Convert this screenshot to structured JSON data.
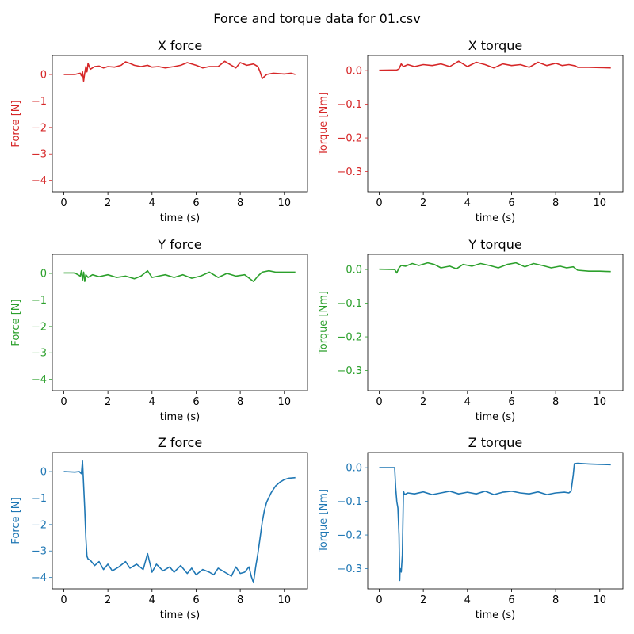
{
  "figure": {
    "suptitle": "Force and torque data for 01.csv"
  },
  "chart_data": [
    {
      "type": "line",
      "title": "X force",
      "xlabel": "time (s)",
      "ylabel": "Force [N]",
      "color": "#d62728",
      "xlim": [
        -0.52,
        11.05
      ],
      "ylim": [
        -4.43,
        0.72
      ],
      "xticks": [
        0,
        2,
        4,
        6,
        8,
        10
      ],
      "xtick_labels": [
        "0",
        "2",
        "4",
        "6",
        "8",
        "10"
      ],
      "yticks": [
        0,
        -1,
        -2,
        -3,
        -4
      ],
      "ytick_labels": [
        "0",
        "−1",
        "−2",
        "−3",
        "−4"
      ],
      "series": [
        {
          "x": [
            0,
            0.5,
            0.75,
            0.8,
            0.85,
            0.9,
            0.95,
            1.0,
            1.05,
            1.1,
            1.2,
            1.4,
            1.6,
            1.8,
            2.0,
            2.3,
            2.6,
            2.8,
            3.0,
            3.2,
            3.5,
            3.8,
            4.0,
            4.3,
            4.6,
            5.0,
            5.3,
            5.6,
            6.0,
            6.3,
            6.6,
            7.0,
            7.3,
            7.6,
            7.8,
            8.0,
            8.3,
            8.6,
            8.8,
            8.9,
            9.0,
            9.2,
            9.5,
            10.0,
            10.3,
            10.5
          ],
          "y": [
            0,
            0,
            0.05,
            -0.05,
            0.1,
            -0.25,
            0.05,
            0.3,
            0.1,
            0.42,
            0.2,
            0.3,
            0.32,
            0.25,
            0.3,
            0.28,
            0.35,
            0.48,
            0.42,
            0.35,
            0.3,
            0.35,
            0.28,
            0.3,
            0.25,
            0.3,
            0.35,
            0.45,
            0.35,
            0.25,
            0.3,
            0.3,
            0.5,
            0.35,
            0.25,
            0.45,
            0.35,
            0.4,
            0.3,
            0.1,
            -0.15,
            0.0,
            0.05,
            0.02,
            0.05,
            0.0
          ]
        }
      ]
    },
    {
      "type": "line",
      "title": "X torque",
      "xlabel": "time (s)",
      "ylabel": "Torque [Nm]",
      "color": "#d62728",
      "xlim": [
        -0.52,
        11.05
      ],
      "ylim": [
        -0.36,
        0.045
      ],
      "xticks": [
        0,
        2,
        4,
        6,
        8,
        10
      ],
      "xtick_labels": [
        "0",
        "2",
        "4",
        "6",
        "8",
        "10"
      ],
      "yticks": [
        0,
        -0.1,
        -0.2,
        -0.3
      ],
      "ytick_labels": [
        "0.0",
        "−0.1",
        "−0.2",
        "−0.3"
      ],
      "series": [
        {
          "x": [
            0,
            0.8,
            0.9,
            1.0,
            1.1,
            1.3,
            1.6,
            2.0,
            2.4,
            2.8,
            3.2,
            3.6,
            3.8,
            4.0,
            4.4,
            4.8,
            5.2,
            5.6,
            6.0,
            6.4,
            6.8,
            7.2,
            7.6,
            8.0,
            8.3,
            8.6,
            8.9,
            9.0,
            9.5,
            10.0,
            10.5
          ],
          "y": [
            0.001,
            0.002,
            0.005,
            0.02,
            0.012,
            0.018,
            0.012,
            0.018,
            0.015,
            0.02,
            0.012,
            0.028,
            0.02,
            0.012,
            0.025,
            0.018,
            0.008,
            0.02,
            0.015,
            0.018,
            0.01,
            0.025,
            0.015,
            0.022,
            0.015,
            0.018,
            0.014,
            0.01,
            0.01,
            0.009,
            0.008
          ]
        }
      ]
    },
    {
      "type": "line",
      "title": "Y force",
      "xlabel": "time (s)",
      "ylabel": "Force [N]",
      "color": "#2ca02c",
      "xlim": [
        -0.52,
        11.05
      ],
      "ylim": [
        -4.43,
        0.72
      ],
      "xticks": [
        0,
        2,
        4,
        6,
        8,
        10
      ],
      "xtick_labels": [
        "0",
        "2",
        "4",
        "6",
        "8",
        "10"
      ],
      "yticks": [
        0,
        -1,
        -2,
        -3,
        -4
      ],
      "ytick_labels": [
        "0",
        "−1",
        "−2",
        "−3",
        "−4"
      ],
      "series": [
        {
          "x": [
            0,
            0.5,
            0.75,
            0.8,
            0.85,
            0.9,
            0.95,
            1.0,
            1.05,
            1.1,
            1.3,
            1.6,
            2.0,
            2.4,
            2.8,
            3.2,
            3.5,
            3.8,
            4.0,
            4.3,
            4.6,
            5.0,
            5.4,
            5.8,
            6.2,
            6.6,
            7.0,
            7.4,
            7.8,
            8.2,
            8.6,
            8.8,
            9.0,
            9.3,
            9.6,
            10.0,
            10.5
          ],
          "y": [
            0.02,
            0.02,
            -0.1,
            0.1,
            -0.25,
            0.05,
            -0.3,
            -0.05,
            -0.1,
            -0.15,
            -0.05,
            -0.12,
            -0.05,
            -0.15,
            -0.1,
            -0.2,
            -0.1,
            0.1,
            -0.15,
            -0.1,
            -0.05,
            -0.15,
            -0.05,
            -0.18,
            -0.1,
            0.05,
            -0.15,
            0.0,
            -0.1,
            -0.05,
            -0.3,
            -0.1,
            0.05,
            0.1,
            0.05,
            0.05,
            0.05
          ]
        }
      ]
    },
    {
      "type": "line",
      "title": "Y torque",
      "xlabel": "time (s)",
      "ylabel": "Torque [Nm]",
      "color": "#2ca02c",
      "xlim": [
        -0.52,
        11.05
      ],
      "ylim": [
        -0.36,
        0.045
      ],
      "xticks": [
        0,
        2,
        4,
        6,
        8,
        10
      ],
      "xtick_labels": [
        "0",
        "2",
        "4",
        "6",
        "8",
        "10"
      ],
      "yticks": [
        0,
        -0.1,
        -0.2,
        -0.3
      ],
      "ytick_labels": [
        "0.0",
        "−0.1",
        "−0.2",
        "−0.3"
      ],
      "series": [
        {
          "x": [
            0,
            0.7,
            0.8,
            0.9,
            1.0,
            1.2,
            1.5,
            1.8,
            2.2,
            2.5,
            2.8,
            3.2,
            3.5,
            3.8,
            4.2,
            4.6,
            5.0,
            5.4,
            5.8,
            6.2,
            6.6,
            7.0,
            7.4,
            7.8,
            8.2,
            8.5,
            8.8,
            9.0,
            9.5,
            10.0,
            10.5
          ],
          "y": [
            0.001,
            0.0,
            -0.01,
            0.005,
            0.012,
            0.01,
            0.018,
            0.012,
            0.02,
            0.015,
            0.005,
            0.01,
            0.002,
            0.015,
            0.01,
            0.018,
            0.012,
            0.005,
            0.015,
            0.02,
            0.008,
            0.018,
            0.012,
            0.005,
            0.01,
            0.005,
            0.008,
            -0.002,
            -0.005,
            -0.005,
            -0.006
          ]
        }
      ]
    },
    {
      "type": "line",
      "title": "Z force",
      "xlabel": "time (s)",
      "ylabel": "Force [N]",
      "color": "#1f77b4",
      "xlim": [
        -0.52,
        11.05
      ],
      "ylim": [
        -4.43,
        0.72
      ],
      "xticks": [
        0,
        2,
        4,
        6,
        8,
        10
      ],
      "xtick_labels": [
        "0",
        "2",
        "4",
        "6",
        "8",
        "10"
      ],
      "yticks": [
        0,
        -1,
        -2,
        -3,
        -4
      ],
      "ytick_labels": [
        "0",
        "−1",
        "−2",
        "−3",
        "−4"
      ],
      "series": [
        {
          "x": [
            0,
            0.5,
            0.7,
            0.8,
            0.85,
            0.9,
            0.95,
            1.0,
            1.05,
            1.1,
            1.2,
            1.4,
            1.6,
            1.8,
            2.0,
            2.2,
            2.5,
            2.8,
            3.0,
            3.3,
            3.6,
            3.8,
            4.0,
            4.2,
            4.5,
            4.8,
            5.0,
            5.3,
            5.6,
            5.8,
            6.0,
            6.3,
            6.6,
            6.8,
            7.0,
            7.3,
            7.6,
            7.8,
            8.0,
            8.2,
            8.4,
            8.5,
            8.6,
            8.7,
            8.8,
            8.9,
            9.0,
            9.1,
            9.2,
            9.4,
            9.6,
            9.8,
            10.0,
            10.2,
            10.5
          ],
          "y": [
            0.0,
            -0.02,
            0.0,
            -0.08,
            0.4,
            -0.5,
            -1.4,
            -2.5,
            -3.2,
            -3.3,
            -3.35,
            -3.55,
            -3.4,
            -3.7,
            -3.5,
            -3.75,
            -3.6,
            -3.4,
            -3.65,
            -3.5,
            -3.7,
            -3.1,
            -3.8,
            -3.5,
            -3.75,
            -3.6,
            -3.8,
            -3.55,
            -3.85,
            -3.65,
            -3.9,
            -3.7,
            -3.8,
            -3.9,
            -3.65,
            -3.8,
            -3.95,
            -3.6,
            -3.85,
            -3.8,
            -3.6,
            -3.95,
            -4.2,
            -3.6,
            -3.1,
            -2.5,
            -1.9,
            -1.45,
            -1.15,
            -0.8,
            -0.55,
            -0.4,
            -0.3,
            -0.25,
            -0.23
          ]
        }
      ]
    },
    {
      "type": "line",
      "title": "Z torque",
      "xlabel": "time (s)",
      "ylabel": "Torque [Nm]",
      "color": "#1f77b4",
      "xlim": [
        -0.52,
        11.05
      ],
      "ylim": [
        -0.36,
        0.045
      ],
      "xticks": [
        0,
        2,
        4,
        6,
        8,
        10
      ],
      "xtick_labels": [
        "0",
        "2",
        "4",
        "6",
        "8",
        "10"
      ],
      "yticks": [
        0,
        -0.1,
        -0.2,
        -0.3
      ],
      "ytick_labels": [
        "0.0",
        "−0.1",
        "−0.2",
        "−0.3"
      ],
      "series": [
        {
          "x": [
            0,
            0.6,
            0.7,
            0.75,
            0.8,
            0.85,
            0.9,
            0.93,
            0.95,
            1.0,
            1.05,
            1.1,
            1.15,
            1.3,
            1.6,
            2.0,
            2.4,
            2.8,
            3.2,
            3.6,
            4.0,
            4.4,
            4.8,
            5.2,
            5.6,
            6.0,
            6.4,
            6.8,
            7.2,
            7.6,
            8.0,
            8.4,
            8.6,
            8.7,
            8.8,
            8.85,
            9.0,
            9.5,
            10.0,
            10.5
          ],
          "y": [
            0.0,
            0.0,
            0.0,
            -0.06,
            -0.1,
            -0.12,
            -0.2,
            -0.335,
            -0.3,
            -0.31,
            -0.26,
            -0.07,
            -0.08,
            -0.075,
            -0.078,
            -0.072,
            -0.08,
            -0.075,
            -0.07,
            -0.078,
            -0.073,
            -0.078,
            -0.07,
            -0.08,
            -0.073,
            -0.07,
            -0.075,
            -0.078,
            -0.072,
            -0.08,
            -0.075,
            -0.073,
            -0.075,
            -0.07,
            -0.02,
            0.012,
            0.013,
            0.011,
            0.01,
            0.009
          ]
        }
      ]
    }
  ]
}
